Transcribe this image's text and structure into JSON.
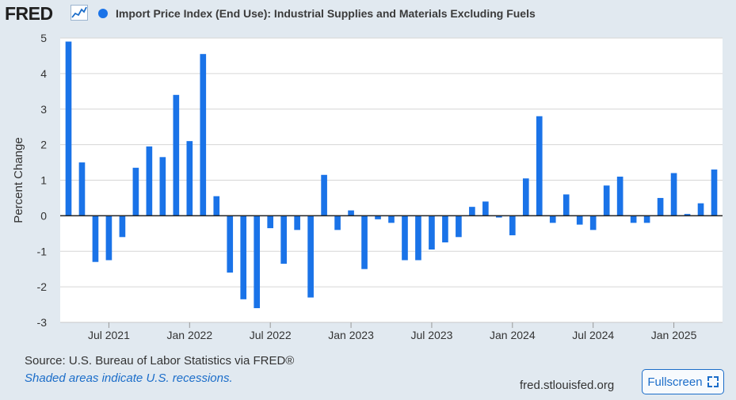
{
  "header": {
    "logo_text": "FRED",
    "logo_icon": "trend-line-icon",
    "series_title": "Import Price Index (End Use): Industrial Supplies and Materials Excluding Fuels"
  },
  "colors": {
    "bar": "#1a73e8",
    "background": "#e1e9f0",
    "plot_background": "#ffffff",
    "grid": "#d6d6d6",
    "accent": "#1b6dc9"
  },
  "chart_data": {
    "type": "bar",
    "ylabel": "Percent Change",
    "ylim": [
      -3,
      5
    ],
    "yticks": [
      5,
      4,
      3,
      2,
      1,
      0,
      -1,
      -2,
      -3
    ],
    "grid": true,
    "x_start": "2021-04",
    "xtick_labels": [
      {
        "label": "Jul 2021",
        "date": "2021-07"
      },
      {
        "label": "Jan 2022",
        "date": "2022-01"
      },
      {
        "label": "Jul 2022",
        "date": "2022-07"
      },
      {
        "label": "Jan 2023",
        "date": "2023-01"
      },
      {
        "label": "Jul 2023",
        "date": "2023-07"
      },
      {
        "label": "Jan 2024",
        "date": "2024-01"
      },
      {
        "label": "Jul 2024",
        "date": "2024-07"
      },
      {
        "label": "Jan 2025",
        "date": "2025-01"
      }
    ],
    "series": [
      {
        "values": [
          4.9,
          1.5,
          -1.3,
          -1.25,
          -0.6,
          1.35,
          1.95,
          1.65,
          3.4,
          2.1,
          4.55,
          0.55,
          -1.6,
          -2.35,
          -2.6,
          -0.35,
          -1.35,
          -0.4,
          -2.3,
          1.15,
          -0.4,
          0.15,
          -1.5,
          -0.1,
          -0.2,
          -1.25,
          -1.25,
          -0.95,
          -0.75,
          -0.6,
          0.25,
          0.4,
          -0.05,
          -0.55,
          1.05,
          2.8,
          -0.2,
          0.6,
          -0.25,
          -0.4,
          0.85,
          1.1,
          -0.2,
          -0.2,
          0.5,
          1.2,
          0.05,
          0.35,
          1.3
        ]
      }
    ]
  },
  "footer": {
    "source": "Source: U.S. Bureau of Labor Statistics via FRED®",
    "recession_note": "Shaded areas indicate U.S. recessions.",
    "site": "fred.stlouisfed.org",
    "fullscreen_label": "Fullscreen",
    "fullscreen_icon": "expand-icon"
  }
}
